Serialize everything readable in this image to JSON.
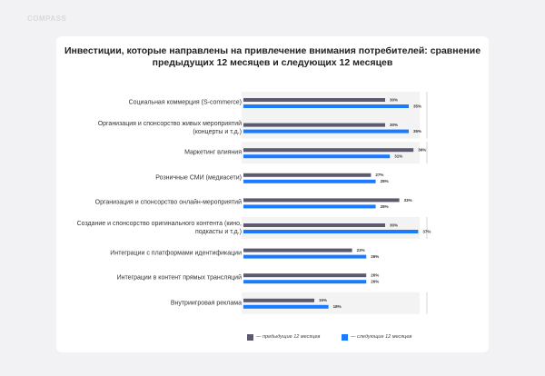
{
  "brand": "COMPASS",
  "chart_data": {
    "type": "bar",
    "orientation": "horizontal",
    "title": "Инвестиции, которые направлены на привлечение внимания потребителей: сравнение предыдущих 12 месяцев и следующих 12 месяцев",
    "categories": [
      "Социальная коммерция (S-commerce)",
      "Организация и спонсорство живых мероприятий (концерты и т.д.)",
      "Маркетинг влияния",
      "Розничные СМИ (медиасети)",
      "Организация и спонсорство онлайн-мероприятий",
      "Создание и спонсорство оригинального контента (кино, подкасты и т.д.)",
      "Интеграции с платформами идентификации",
      "Интеграции в контент прямых трансляций",
      "Внутриигровая реклама"
    ],
    "series": [
      {
        "name": "— предыдущие 12 месяцев",
        "color": "#5b5a6e",
        "values": [
          30,
          30,
          36,
          27,
          33,
          30,
          23,
          26,
          15
        ],
        "value_labels": [
          "30%",
          "30%",
          "36%",
          "27%",
          "33%",
          "30%",
          "23%",
          "26%",
          "15%"
        ]
      },
      {
        "name": "— следующие 12 месяцев",
        "color": "#1a7bff",
        "values": [
          35,
          35,
          31,
          28,
          28,
          37,
          26,
          26,
          18
        ],
        "value_labels": [
          "35%",
          "35%",
          "31%",
          "28%",
          "28%",
          "37%",
          "26%",
          "26%",
          "18%"
        ]
      }
    ],
    "legend": "bottom"
  }
}
